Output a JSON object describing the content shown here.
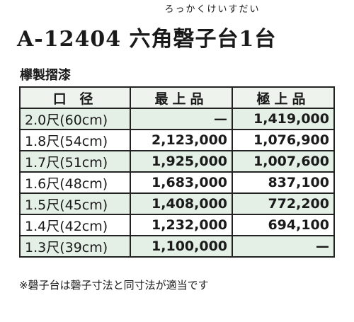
{
  "header": {
    "ruby": "ろっかくけいすだい",
    "title": "A-12404 六角磬子台1台",
    "subtitle": "欅製摺漆"
  },
  "table": {
    "columns": [
      "口 径",
      "最上品",
      "極上品"
    ],
    "rows": [
      [
        "2.0尺(60cm)",
        "—",
        "1,419,000"
      ],
      [
        "1.8尺(54cm)",
        "2,123,000",
        "1,076,900"
      ],
      [
        "1.7尺(51cm)",
        "1,925,000",
        "1,007,600"
      ],
      [
        "1.6尺(48cm)",
        "1,683,000",
        "837,100"
      ],
      [
        "1.5尺(45cm)",
        "1,408,000",
        "772,200"
      ],
      [
        "1.4尺(42cm)",
        "1,232,000",
        "694,100"
      ],
      [
        "1.3尺(39cm)",
        "1,100,000",
        "—"
      ]
    ]
  },
  "footer": {
    "note": "※磬子台は磬子寸法と同寸法が適当です"
  }
}
